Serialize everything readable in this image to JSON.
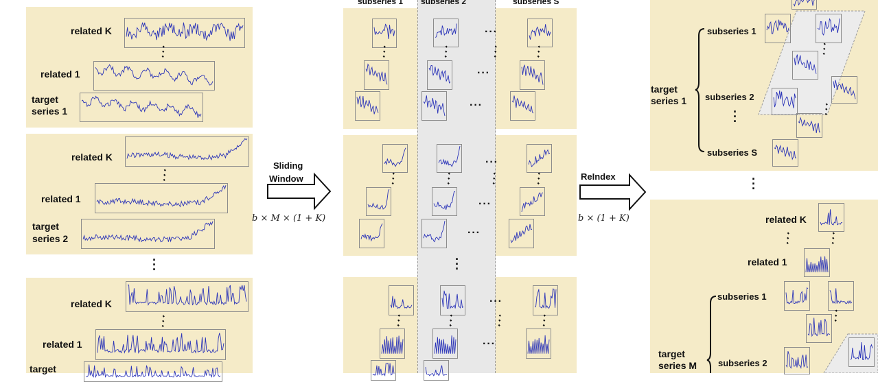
{
  "labels": {
    "related_k": "related K",
    "related_1": "related 1",
    "target_series_1": [
      "target",
      "series 1"
    ],
    "target_series_2": [
      "target",
      "series 2"
    ],
    "target": "target",
    "target_series_m": [
      "target",
      "series M"
    ]
  },
  "middle": {
    "header_subseries_1": "subseries 1",
    "header_subseries_2": "subseries 2",
    "header_subseries_s": "subseries S"
  },
  "arrow1": {
    "line1": "Sliding",
    "line2": "Window",
    "math": "b × M × (1 + K)"
  },
  "arrow2": {
    "line1": "ReIndex",
    "math": "b × (1 + K)"
  },
  "right": {
    "subseries_1": "subseries 1",
    "subseries_2": "subseries 2",
    "subseries_s": "subseries S",
    "colors": {
      "panel": "#f5ebc8",
      "line": "#2b34b8",
      "band": "#e6e6e6"
    }
  }
}
